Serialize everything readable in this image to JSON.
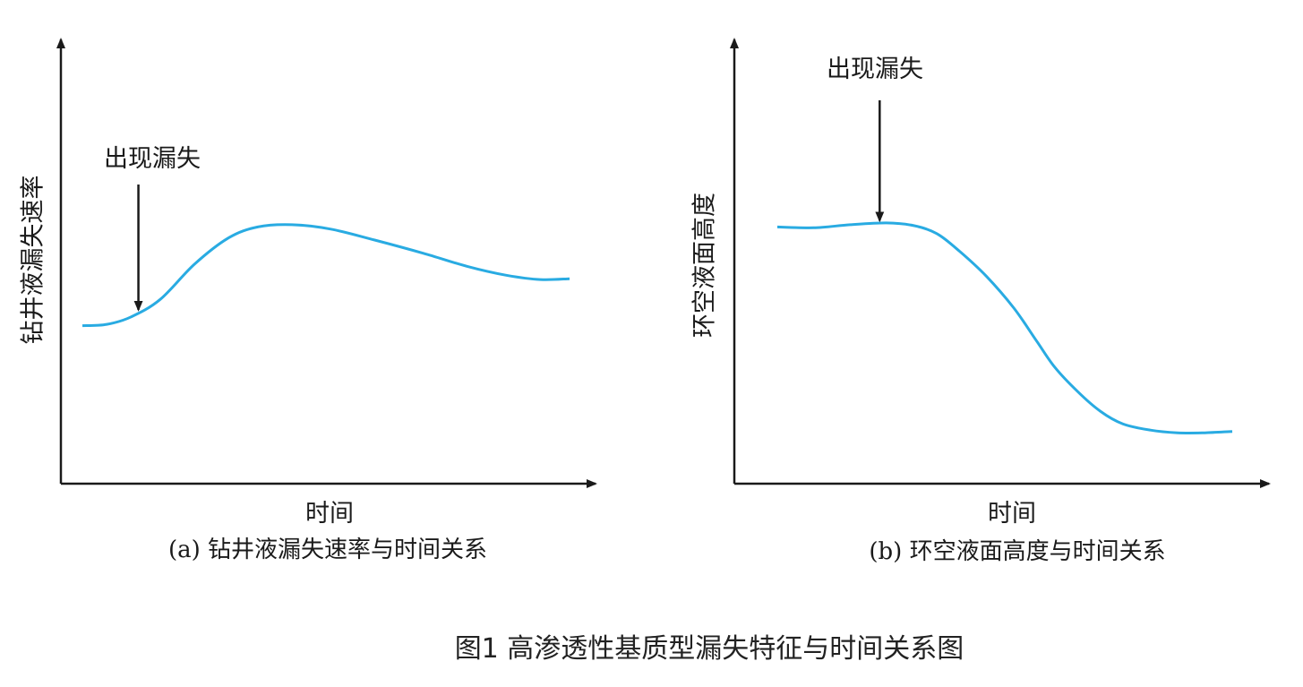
{
  "figure_caption": "图1  高渗透性基质型漏失特征与时间关系图",
  "chart_data": [
    {
      "type": "line",
      "subcaption": "(a) 钻井液漏失速率与时间关系",
      "xlabel": "时间",
      "ylabel": "钻井液漏失速率",
      "xlim": [
        0,
        100
      ],
      "ylim": [
        0,
        100
      ],
      "grid": false,
      "line_color": "#29abe2",
      "series": [
        {
          "x": [
            0,
            5,
            10,
            16,
            23,
            30,
            36,
            43,
            51,
            60,
            70,
            79,
            87,
            94,
            100
          ],
          "y": [
            36,
            36.3,
            38,
            42,
            50,
            56,
            58.5,
            59,
            58,
            55.5,
            52.5,
            49.5,
            47.5,
            46.5,
            46.7
          ]
        }
      ],
      "annotation": {
        "text": "出现漏失",
        "x": 11.5
      }
    },
    {
      "type": "line",
      "subcaption": "(b) 环空液面高度与时间关系",
      "xlabel": "时间",
      "ylabel": "环空液面高度",
      "xlim": [
        0,
        100
      ],
      "ylim": [
        0,
        100
      ],
      "grid": false,
      "line_color": "#29abe2",
      "series": [
        {
          "x": [
            0,
            8,
            16,
            24,
            30,
            35,
            40,
            46,
            52,
            57,
            61,
            66,
            71,
            76,
            82,
            88,
            94,
            100
          ],
          "y": [
            58.5,
            58.3,
            59,
            59.4,
            58.8,
            57,
            53,
            47.2,
            40,
            32.5,
            26.5,
            21,
            16.5,
            13.6,
            12.2,
            11.6,
            11.6,
            11.9
          ]
        }
      ],
      "annotation": {
        "text": "出现漏失",
        "x": 22.5
      }
    }
  ],
  "colors": {
    "axis": "#1a1a1a",
    "curve": "#29abe2",
    "text": "#1a1a1a"
  }
}
